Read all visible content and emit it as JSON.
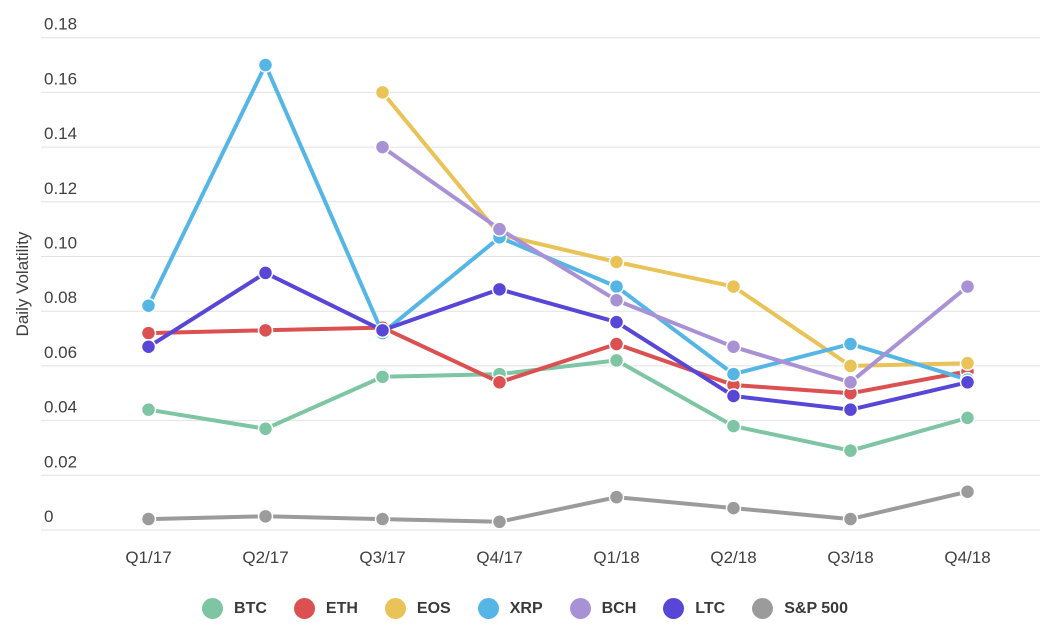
{
  "chart_data": {
    "type": "line",
    "title": "",
    "ylabel": "Daily Volatility",
    "xlabel": "",
    "categories": [
      "Q1/17",
      "Q2/17",
      "Q3/17",
      "Q4/17",
      "Q1/18",
      "Q2/18",
      "Q3/18",
      "Q4/18"
    ],
    "series": [
      {
        "name": "BTC",
        "color": "#7ec5a3",
        "values": [
          0.044,
          0.037,
          0.056,
          0.057,
          0.062,
          0.038,
          0.029,
          0.041
        ]
      },
      {
        "name": "ETH",
        "color": "#db5151",
        "values": [
          0.072,
          0.073,
          0.074,
          0.054,
          0.068,
          0.053,
          0.05,
          0.058
        ]
      },
      {
        "name": "EOS",
        "color": "#e9c258",
        "values": [
          null,
          null,
          0.16,
          0.108,
          0.098,
          0.089,
          0.06,
          0.061
        ]
      },
      {
        "name": "XRP",
        "color": "#55b6e6",
        "values": [
          0.082,
          0.17,
          0.072,
          0.107,
          0.089,
          0.057,
          0.068,
          0.055
        ]
      },
      {
        "name": "BCH",
        "color": "#a892d5",
        "values": [
          null,
          null,
          0.14,
          0.11,
          0.084,
          0.067,
          0.054,
          0.089
        ]
      },
      {
        "name": "LTC",
        "color": "#5846d6",
        "values": [
          0.067,
          0.094,
          0.073,
          0.088,
          0.076,
          0.049,
          0.044,
          0.054
        ]
      },
      {
        "name": "S&P 500",
        "color": "#9b9b9b",
        "values": [
          0.004,
          0.005,
          0.004,
          0.003,
          0.012,
          0.008,
          0.004,
          0.014
        ]
      }
    ],
    "ylim": [
      0,
      0.18
    ],
    "ytick_values": [
      0.18,
      0.16,
      0.14,
      0.12,
      0.1,
      0.08,
      0.06,
      0.04,
      0.02,
      0
    ],
    "ytick_labels": [
      "0.18",
      "0.16",
      "0.14",
      "0.12",
      "0.10",
      "0.08",
      "0.06",
      "0.04",
      "0.02",
      "0"
    ],
    "grid": true,
    "legend_position": "bottom",
    "grid_color": "#e2e2e2",
    "tick_text_color": "#404040",
    "background_color": "#ffffff"
  }
}
